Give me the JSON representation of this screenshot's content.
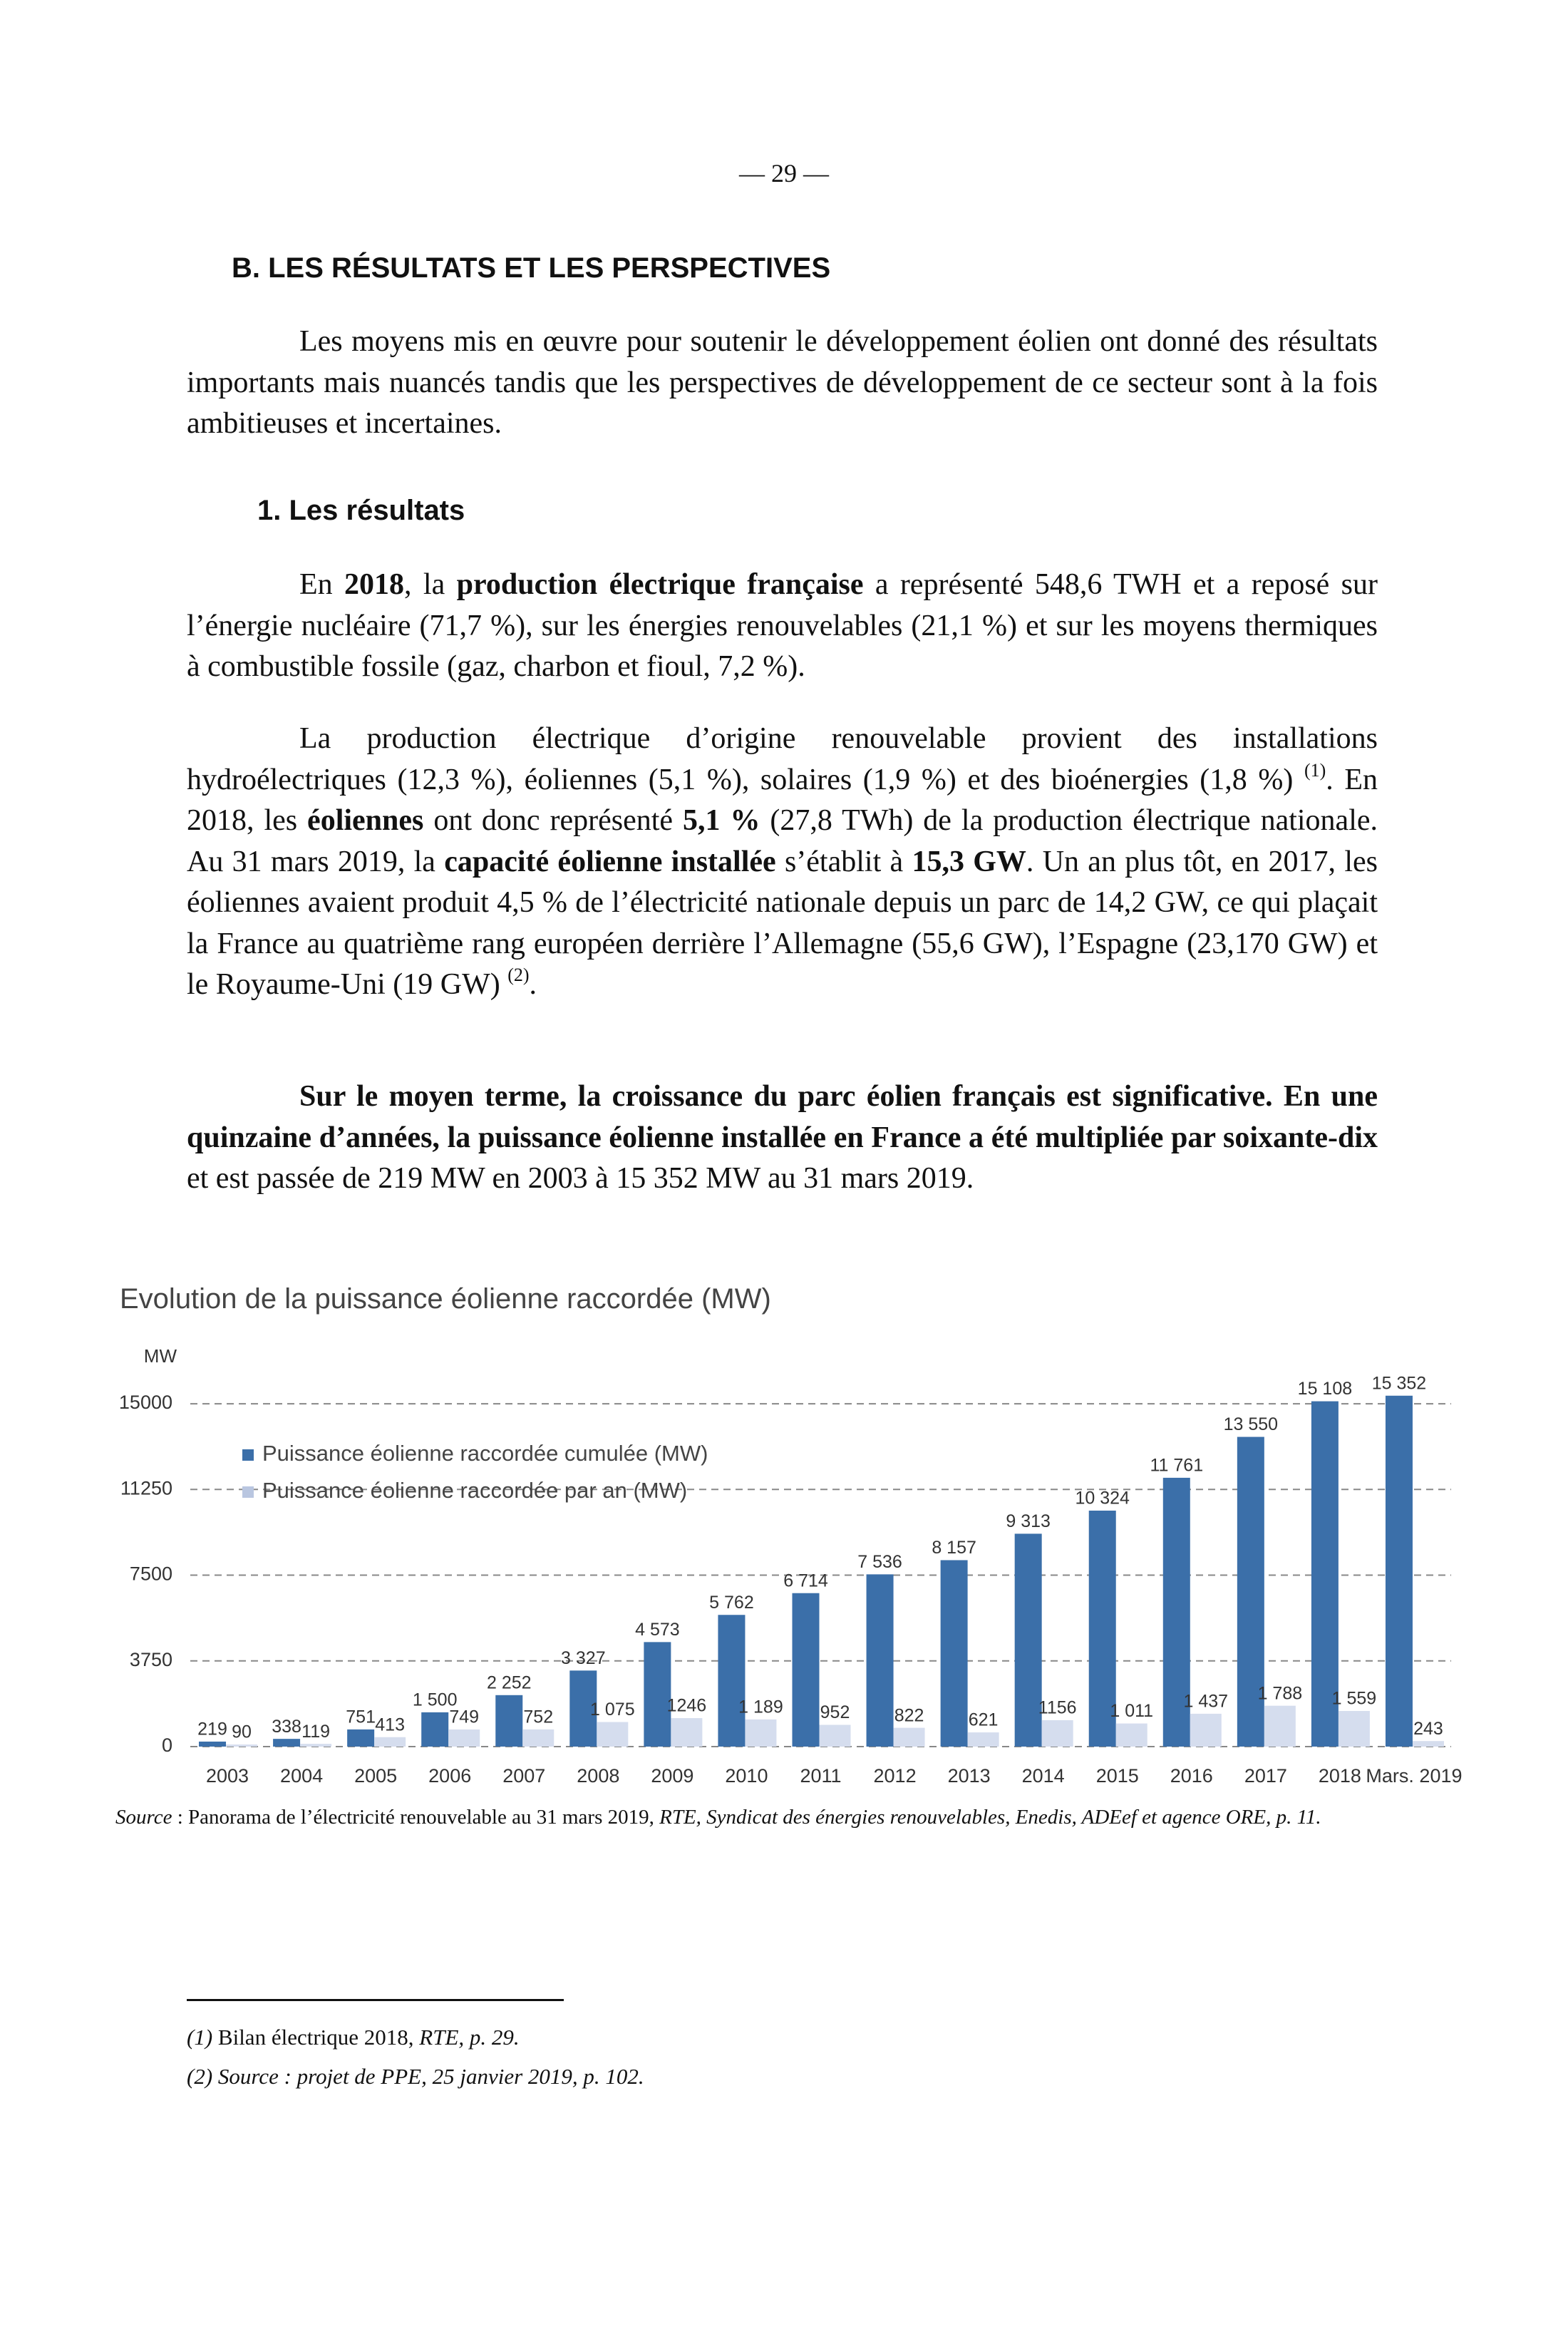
{
  "page_number": "— 29 —",
  "heading": "B. LES RÉSULTATS ET LES PERSPECTIVES",
  "intro": [
    {
      "text": "Les moyens mis en œuvre pour soutenir le développement éolien ont donné des résultats importants mais nuancés tandis que les perspectives de développement de ce secteur sont à la fois ambitieuses et incertaines."
    }
  ],
  "subheading": "1. Les résultats",
  "paragraphs": [
    [
      {
        "text": "En "
      },
      {
        "text": "2018",
        "style": "bold"
      },
      {
        "text": ", la "
      },
      {
        "text": "production électrique française",
        "style": "bold"
      },
      {
        "text": " a représenté 548,6 TWH et a reposé sur l’énergie nucléaire (71,7 %), sur les énergies renouvelables (21,1 %) et sur les moyens thermiques à combustible fossile (gaz, charbon et fioul, 7,2 %)."
      }
    ],
    [
      {
        "text": "La production électrique d’origine renouvelable provient des installations hydroélectriques (12,3 %), éoliennes (5,1 %), solaires (1,9 %) et des bioénergies (1,8 %) "
      },
      {
        "text": "(1)",
        "style": "sup"
      },
      {
        "text": ". En 2018, les "
      },
      {
        "text": "éoliennes",
        "style": "bold"
      },
      {
        "text": " ont donc représenté "
      },
      {
        "text": "5,1 %",
        "style": "bold"
      },
      {
        "text": " (27,8 TWh) de la production électrique nationale. Au 31 mars 2019, la "
      },
      {
        "text": "capacité éolienne installée",
        "style": "bold"
      },
      {
        "text": " s’établit à "
      },
      {
        "text": "15,3 GW",
        "style": "bold"
      },
      {
        "text": ". Un an plus tôt, en 2017, les éoliennes avaient produit 4,5 % de l’électricité nationale depuis un parc de 14,2 GW, ce qui plaçait la France au quatrième rang européen derrière l’Allemagne (55,6 GW), l’Espagne (23,170 GW) et le Royaume-Uni (19 GW) "
      },
      {
        "text": "(2)",
        "style": "sup"
      },
      {
        "text": "."
      }
    ],
    [
      {
        "text": "Sur le moyen terme, la croissance du parc éolien français est significative. En une quinzaine d’années, la puissance éolienne installée en France a été multipliée par soixante-dix",
        "style": "bold"
      },
      {
        "text": " et est passée de 219 MW en 2003 à 15 352 MW au 31 mars 2019."
      }
    ]
  ],
  "chart_data": {
    "type": "bar",
    "title": "Evolution de la puissance éolienne raccordée (MW)",
    "y_label": "MW",
    "categories": [
      "2003",
      "2004",
      "2005",
      "2006",
      "2007",
      "2008",
      "2009",
      "2010",
      "2011",
      "2012",
      "2013",
      "2014",
      "2015",
      "2016",
      "2017",
      "2018",
      "Mars. 2019"
    ],
    "series": [
      {
        "name": "Puissance éolienne raccordée cumulée (MW)",
        "color": "#3b6fa9",
        "values": [
          219,
          338,
          751,
          1500,
          2252,
          3327,
          4573,
          5762,
          6714,
          7536,
          8157,
          9313,
          10324,
          11761,
          13550,
          15108,
          15352
        ],
        "value_labels": [
          "219",
          "338",
          "751",
          "1 500",
          "2 252",
          "3 327",
          "4 573",
          "5 762",
          "6 714",
          "7 536",
          "8 157",
          "9 313",
          "10 324",
          "11 761",
          "13 550",
          "15 108",
          "15 352"
        ]
      },
      {
        "name": "Puissance éolienne raccordée par an (MW)",
        "color": "#d5ddee",
        "values": [
          90,
          119,
          413,
          749,
          752,
          1075,
          1246,
          1189,
          952,
          822,
          621,
          1156,
          1011,
          1437,
          1788,
          1559,
          243
        ],
        "value_labels": [
          "90",
          "119",
          "413",
          "749",
          "752",
          "1 075",
          "1246",
          "1 189",
          "952",
          "822",
          "621",
          "1156",
          "1 011",
          "1 437",
          "1 788",
          "1 559",
          "243"
        ]
      }
    ],
    "ylim": [
      0,
      16000
    ],
    "yticks": [
      0,
      3750,
      7500,
      11250,
      15000
    ],
    "grid": true,
    "legend": "top-left"
  },
  "source": [
    {
      "text": "Source",
      "style": "italic"
    },
    {
      "text": " : Panorama de l’électricité renouvelable au 31 mars 2019, "
    },
    {
      "text": "RTE, Syndicat des énergies renouvelables, Enedis, ADEef et agence ORE, p. 11.",
      "style": "italic"
    }
  ],
  "footnotes": [
    [
      {
        "text": "(1)",
        "style": "italic"
      },
      {
        "text": " Bilan électrique 2018, "
      },
      {
        "text": "RTE, p. 29.",
        "style": "italic"
      }
    ],
    [
      {
        "text": "(2) Source : projet de PPE, 25 janvier 2019, p. 102.",
        "style": "italic"
      }
    ]
  ]
}
